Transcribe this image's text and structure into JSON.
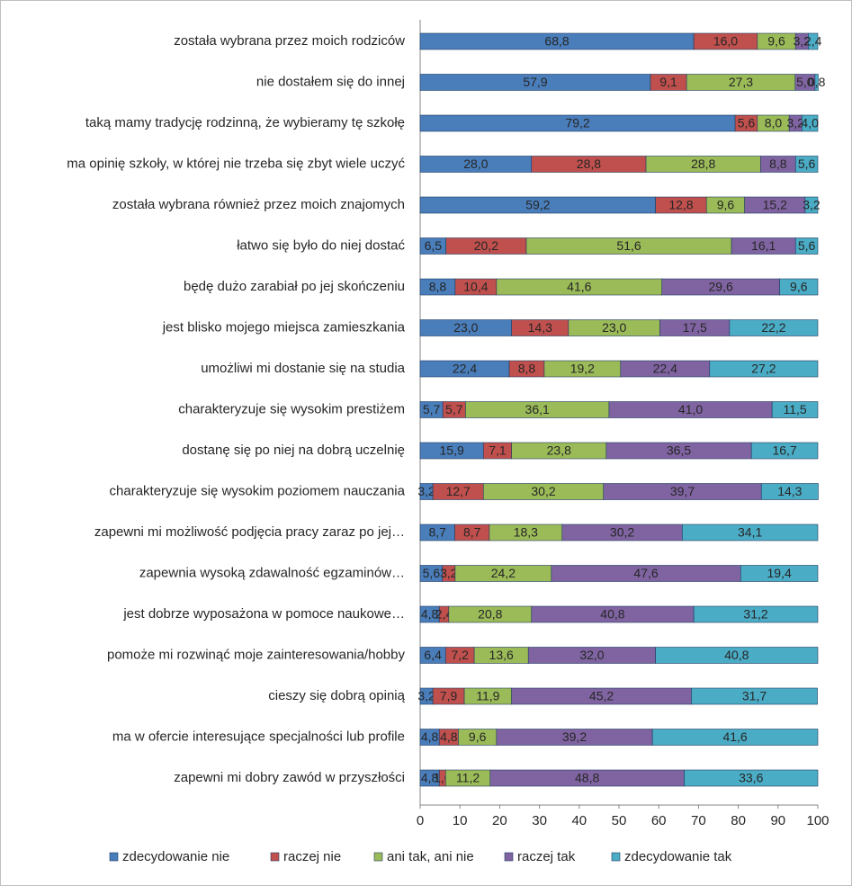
{
  "chart_data": {
    "type": "stacked-bar-horizontal",
    "categories": [
      "została wybrana przez moich rodziców",
      "nie dostałem się do innej",
      "taką mamy tradycję rodzinną, że wybieramy tę szkołę",
      "ma opinię szkoły, w której nie trzeba się zbyt wiele uczyć",
      "została wybrana również przez moich znajomych",
      "łatwo się było do niej dostać",
      "będę dużo zarabiał po jej skończeniu",
      "jest blisko mojego miejsca zamieszkania",
      "umożliwi mi dostanie się na studia",
      "charakteryzuje się wysokim prestiżem",
      "dostanę się po niej na dobrą uczelnię",
      "charakteryzuje się wysokim poziomem nauczania",
      "zapewni mi możliwość podjęcia pracy zaraz po jej…",
      "zapewnia wysoką zdawalność egzaminów…",
      "jest dobrze wyposażona w pomoce naukowe…",
      "pomoże mi rozwinąć moje zainteresowania/hobby",
      "cieszy się dobrą opinią",
      "ma w ofercie interesujące specjalności lub profile",
      "zapewni mi dobry zawód w przyszłości"
    ],
    "series": [
      {
        "name": "zdecydowanie nie",
        "color": "#4a7ebb",
        "values": [
          68.8,
          57.9,
          79.2,
          28.0,
          59.2,
          6.5,
          8.8,
          23.0,
          22.4,
          5.7,
          15.9,
          3.2,
          8.7,
          5.6,
          4.8,
          6.4,
          3.2,
          4.8,
          4.8
        ],
        "value_labels": [
          "68,8",
          "57,9",
          "79,2",
          "28,0",
          "59,2",
          "6,5",
          "8,8",
          "23,0",
          "22,4",
          "5,7",
          "15,9",
          "3,2",
          "8,7",
          "5,6",
          "4,8",
          "6,4",
          "3,2",
          "4,8",
          "4,8"
        ]
      },
      {
        "name": "raczej nie",
        "color": "#c0504d",
        "values": [
          16.0,
          9.1,
          5.6,
          28.8,
          12.8,
          20.2,
          10.4,
          14.3,
          8.8,
          5.7,
          7.1,
          12.7,
          8.7,
          3.2,
          2.4,
          7.2,
          7.9,
          4.8,
          1.6
        ],
        "value_labels": [
          "16,0",
          "9,1",
          "5,6",
          "28,8",
          "12,8",
          "20,2",
          "10,4",
          "14,3",
          "8,8",
          "5,7",
          "7,1",
          "12,7",
          "8,7",
          "3,2",
          "2,4",
          "7,2",
          "7,9",
          "4,8",
          "1,6"
        ]
      },
      {
        "name": "ani tak, ani nie",
        "color": "#9bbb59",
        "values": [
          9.6,
          27.3,
          8.0,
          28.8,
          9.6,
          51.6,
          41.6,
          23.0,
          19.2,
          36.1,
          23.8,
          30.2,
          18.3,
          24.2,
          20.8,
          13.6,
          11.9,
          9.6,
          11.2
        ],
        "value_labels": [
          "9,6",
          "27,3",
          "8,0",
          "28,8",
          "9,6",
          "51,6",
          "41,6",
          "23,0",
          "19,2",
          "36,1",
          "23,8",
          "30,2",
          "18,3",
          "24,2",
          "20,8",
          "13,6",
          "11,9",
          "9,6",
          "11,2"
        ]
      },
      {
        "name": "raczej tak",
        "color": "#8064a2",
        "values": [
          3.2,
          5.0,
          3.2,
          8.8,
          15.2,
          16.1,
          29.6,
          17.5,
          22.4,
          41.0,
          36.5,
          39.7,
          30.2,
          47.6,
          40.8,
          32.0,
          45.2,
          39.2,
          48.8
        ],
        "value_labels": [
          "3,2",
          "5,0",
          "3,2",
          "8,8",
          "15,2",
          "16,1",
          "29,6",
          "17,5",
          "22,4",
          "41,0",
          "36,5",
          "39,7",
          "30,2",
          "47,6",
          "40,8",
          "32,0",
          "45,2",
          "39,2",
          "48,8"
        ]
      },
      {
        "name": "zdecydowanie tak",
        "color": "#4bacc6",
        "values": [
          2.4,
          0.8,
          4.0,
          5.6,
          3.2,
          5.6,
          9.6,
          22.2,
          27.2,
          11.5,
          16.7,
          14.3,
          34.1,
          19.4,
          31.2,
          40.8,
          31.7,
          41.6,
          33.6
        ],
        "value_labels": [
          "2,4",
          "0,8",
          "4,0",
          "5,6",
          "3,2",
          "5,6",
          "9,6",
          "22,2",
          "27,2",
          "11,5",
          "16,7",
          "14,3",
          "34,1",
          "19,4",
          "31,2",
          "40,8",
          "31,7",
          "41,6",
          "33,6"
        ]
      }
    ],
    "xlim": [
      0,
      100
    ],
    "xticks": [
      0,
      10,
      20,
      30,
      40,
      50,
      60,
      70,
      80,
      90,
      100
    ],
    "legend": "bottom"
  }
}
